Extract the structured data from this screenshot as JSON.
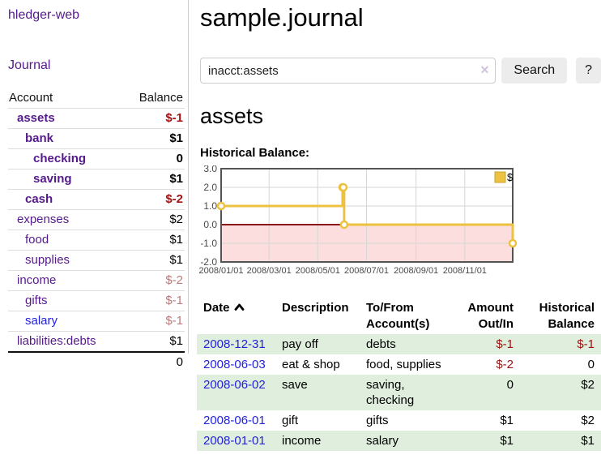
{
  "app": {
    "brand": "hledger-web"
  },
  "sidebar": {
    "journal_link": "Journal",
    "accounts": {
      "col_account": "Account",
      "col_balance": "Balance",
      "rows": [
        {
          "name": "assets",
          "balance": "$-1",
          "level": 1,
          "bold": true,
          "link": "purple",
          "balance_class": "neg-strong"
        },
        {
          "name": "bank",
          "balance": "$1",
          "level": 2,
          "bold": true,
          "link": "purple",
          "balance_class": "pos"
        },
        {
          "name": "checking",
          "balance": "0",
          "level": 3,
          "bold": true,
          "link": "purple",
          "balance_class": "pos"
        },
        {
          "name": "saving",
          "balance": "$1",
          "level": 3,
          "bold": true,
          "link": "purple",
          "balance_class": "pos"
        },
        {
          "name": "cash",
          "balance": "$-2",
          "level": 2,
          "bold": true,
          "link": "purple",
          "balance_class": "neg-strong"
        },
        {
          "name": "expenses",
          "balance": "$2",
          "level": 1,
          "bold": false,
          "link": "purple",
          "balance_class": "pos"
        },
        {
          "name": "food",
          "balance": "$1",
          "level": 2,
          "bold": false,
          "link": "purple",
          "balance_class": "pos"
        },
        {
          "name": "supplies",
          "balance": "$1",
          "level": 2,
          "bold": false,
          "link": "purple",
          "balance_class": "pos"
        },
        {
          "name": "income",
          "balance": "$-2",
          "level": 1,
          "bold": false,
          "link": "purple",
          "balance_class": "neg-weak"
        },
        {
          "name": "gifts",
          "balance": "$-1",
          "level": 2,
          "bold": false,
          "link": "purple",
          "balance_class": "neg-weak"
        },
        {
          "name": "salary",
          "balance": "$-1",
          "level": 2,
          "bold": false,
          "link": "blue",
          "balance_class": "neg-weak"
        },
        {
          "name": "liabilities:debts",
          "balance": "$1",
          "level": 1,
          "bold": false,
          "link": "purple",
          "balance_class": "pos"
        }
      ],
      "total": "0"
    }
  },
  "main": {
    "title": "sample.journal",
    "search": {
      "value": "inacct:assets",
      "clear": "✕",
      "search_button": "Search",
      "help_button": "?"
    },
    "heading": "assets",
    "chart_title": "Historical Balance:"
  },
  "chart_data": {
    "type": "line",
    "title": "Historical Balance:",
    "legend": "$",
    "legend_position": "top-right",
    "step": true,
    "x_range": [
      "2008-01-01",
      "2008-12-31"
    ],
    "ylim": [
      -2,
      3
    ],
    "y_ticks": [
      {
        "v": 3,
        "label": "3.0"
      },
      {
        "v": 2,
        "label": "2.0"
      },
      {
        "v": 1,
        "label": "1.0"
      },
      {
        "v": 0,
        "label": "0.0"
      },
      {
        "v": -1,
        "label": "-1.0"
      },
      {
        "v": -2,
        "label": "-2.0"
      }
    ],
    "x_ticks": [
      {
        "date": "2008-01-01",
        "label": "2008/01/01"
      },
      {
        "date": "2008-03-01",
        "label": "2008/03/01"
      },
      {
        "date": "2008-05-01",
        "label": "2008/05/01"
      },
      {
        "date": "2008-07-01",
        "label": "2008/07/01"
      },
      {
        "date": "2008-09-01",
        "label": "2008/09/01"
      },
      {
        "date": "2008-11-01",
        "label": "2008/11/01"
      }
    ],
    "series": [
      {
        "name": "$",
        "color": "#edc240",
        "points": [
          {
            "date": "2008-01-01",
            "value": 1
          },
          {
            "date": "2008-06-01",
            "value": 2
          },
          {
            "date": "2008-06-02",
            "value": 2
          },
          {
            "date": "2008-06-03",
            "value": 0
          },
          {
            "date": "2008-12-31",
            "value": -1
          }
        ]
      }
    ],
    "grid": true,
    "colors": {
      "grid": "#d6d6d6",
      "border": "#545454",
      "negative_region": "#fcdede",
      "zero_line": "#8b1414",
      "axis_text": "#4a4a4a",
      "marker_fill": "#ffffff"
    }
  },
  "register": {
    "headers": {
      "date": "Date",
      "description": "Description",
      "accounts": "To/From Account(s)",
      "amount": "Amount Out/In",
      "balance": "Historical Balance"
    },
    "rows": [
      {
        "date": "2008-12-31",
        "description": "pay off",
        "accounts": "debts",
        "amount": "$-1",
        "balance": "$-1",
        "amount_neg": true,
        "balance_neg": true
      },
      {
        "date": "2008-06-03",
        "description": "eat & shop",
        "accounts": "food, supplies",
        "amount": "$-2",
        "balance": "0",
        "amount_neg": true,
        "balance_neg": false
      },
      {
        "date": "2008-06-02",
        "description": "save",
        "accounts": "saving, checking",
        "amount": "0",
        "balance": "$2",
        "amount_neg": false,
        "balance_neg": false
      },
      {
        "date": "2008-06-01",
        "description": "gift",
        "accounts": "gifts",
        "amount": "$1",
        "balance": "$2",
        "amount_neg": false,
        "balance_neg": false
      },
      {
        "date": "2008-01-01",
        "description": "income",
        "accounts": "salary",
        "amount": "$1",
        "balance": "$1",
        "amount_neg": false,
        "balance_neg": false
      }
    ]
  }
}
